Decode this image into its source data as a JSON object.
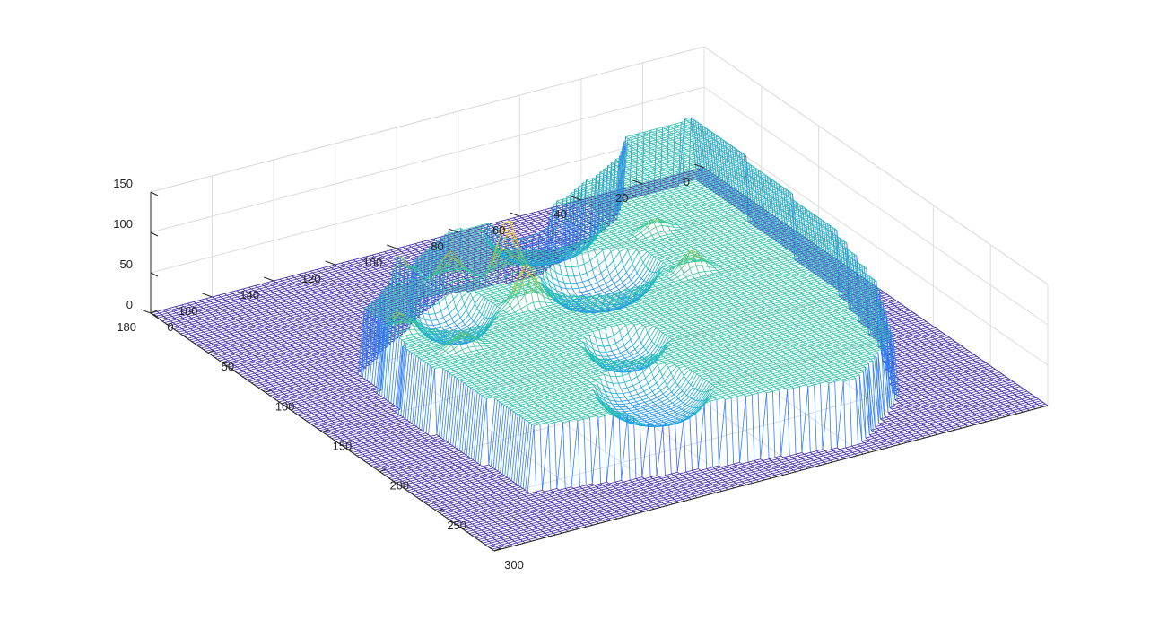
{
  "chart_data": {
    "type": "surface-mesh",
    "title": "",
    "xlabel": "",
    "ylabel": "",
    "zlabel": "",
    "grid": true,
    "colormap": "parula",
    "x_axis": {
      "lim": [
        0,
        300
      ],
      "ticks": [
        0,
        50,
        100,
        150,
        200,
        250,
        300
      ],
      "tick_labels": [
        "0",
        "50",
        "100",
        "150",
        "200",
        "250",
        "300"
      ]
    },
    "y_axis": {
      "lim": [
        0,
        180
      ],
      "ticks": [
        0,
        20,
        40,
        60,
        80,
        100,
        120,
        140,
        160,
        180
      ],
      "tick_labels": [
        "0",
        "20",
        "40",
        "60",
        "80",
        "100",
        "120",
        "140",
        "160",
        "180"
      ]
    },
    "z_axis": {
      "lim": [
        0,
        150
      ],
      "ticks": [
        0,
        50,
        100,
        150
      ],
      "tick_labels": [
        "0",
        "50",
        "100",
        "150"
      ]
    },
    "surface": {
      "base_level": 0,
      "plateau_level": 80,
      "plateau_outline": [
        [
          10,
          10
        ],
        [
          10,
          8
        ],
        [
          60,
          8
        ],
        [
          150,
          12
        ],
        [
          205,
          20
        ],
        [
          260,
          35
        ],
        [
          290,
          58
        ],
        [
          285,
          70
        ],
        [
          272,
          110
        ],
        [
          255,
          150
        ],
        [
          220,
          152
        ],
        [
          160,
          155
        ],
        [
          105,
          150
        ],
        [
          55,
          105
        ],
        [
          60,
          75
        ],
        [
          30,
          40
        ],
        [
          12,
          30
        ]
      ],
      "depressions": [
        {
          "center": [
            75,
            80
          ],
          "radius": [
            22,
            18
          ],
          "level": 45
        },
        {
          "center": [
            130,
            82
          ],
          "radius": [
            22,
            18
          ],
          "level": 42
        },
        {
          "center": [
            130,
            130
          ],
          "radius": [
            20,
            12
          ],
          "level": 48
        },
        {
          "center": [
            250,
            110
          ],
          "radius": [
            28,
            16
          ],
          "level": 50
        },
        {
          "center": [
            200,
            100
          ],
          "radius": [
            18,
            12
          ],
          "level": 52
        }
      ],
      "peaks": [
        {
          "center": [
            110,
            105
          ],
          "height": 150
        },
        {
          "center": [
            140,
            110
          ],
          "height": 128
        },
        {
          "center": [
            100,
            120
          ],
          "height": 115
        },
        {
          "center": [
            85,
            132
          ],
          "height": 110
        },
        {
          "center": [
            150,
            60
          ],
          "height": 105
        },
        {
          "center": [
            105,
            55
          ],
          "height": 95
        },
        {
          "center": [
            135,
            150
          ],
          "height": 104
        },
        {
          "center": [
            165,
            140
          ],
          "height": 98
        }
      ]
    }
  }
}
